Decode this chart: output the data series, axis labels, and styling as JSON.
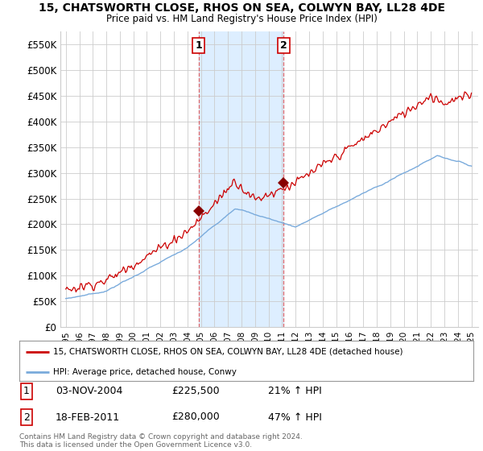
{
  "title": "15, CHATSWORTH CLOSE, RHOS ON SEA, COLWYN BAY, LL28 4DE",
  "subtitle": "Price paid vs. HM Land Registry's House Price Index (HPI)",
  "background_color": "#ffffff",
  "plot_bg_color": "#ffffff",
  "grid_color": "#cccccc",
  "ylim": [
    0,
    575000
  ],
  "yticks": [
    0,
    50000,
    100000,
    150000,
    200000,
    250000,
    300000,
    350000,
    400000,
    450000,
    500000,
    550000
  ],
  "sale1": {
    "date_num": 2004.84,
    "price": 225500,
    "label": "1"
  },
  "sale2": {
    "date_num": 2011.12,
    "price": 280000,
    "label": "2"
  },
  "highlight_color": "#ddeeff",
  "sale_line_color": "#cc0000",
  "sale_dot_color": "#880000",
  "hpi_line_color": "#7aabdc",
  "legend_sale_label": "15, CHATSWORTH CLOSE, RHOS ON SEA, COLWYN BAY, LL28 4DE (detached house)",
  "legend_hpi_label": "HPI: Average price, detached house, Conwy",
  "table_row1": [
    "1",
    "03-NOV-2004",
    "£225,500",
    "21% ↑ HPI"
  ],
  "table_row2": [
    "2",
    "18-FEB-2011",
    "£280,000",
    "47% ↑ HPI"
  ],
  "footer": "Contains HM Land Registry data © Crown copyright and database right 2024.\nThis data is licensed under the Open Government Licence v3.0.",
  "xmin": 1994.6,
  "xmax": 2025.5,
  "xtick_years": [
    1995,
    1996,
    1997,
    1998,
    1999,
    2000,
    2001,
    2002,
    2003,
    2004,
    2005,
    2006,
    2007,
    2008,
    2009,
    2010,
    2011,
    2012,
    2013,
    2014,
    2015,
    2016,
    2017,
    2018,
    2019,
    2020,
    2021,
    2022,
    2023,
    2024,
    2025
  ]
}
